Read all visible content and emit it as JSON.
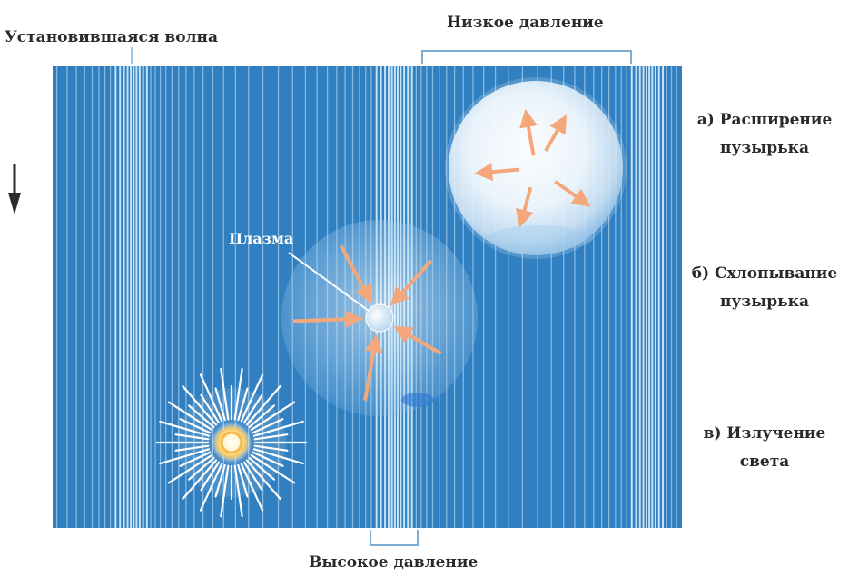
{
  "labels": {
    "standing_wave": "Установившаяся волна",
    "low_pressure": "Низкое давление",
    "high_pressure": "Высокое давление",
    "plasma": "Плазма"
  },
  "stages": {
    "a_line1": "а) Расширение",
    "a_line2": "пузырька",
    "b_line1": "б) Схлопывание",
    "b_line2": "пузырька",
    "c_line1": "в)  Излучение",
    "c_line2": "света"
  },
  "colors": {
    "background": "#2f7fc1",
    "stripe": "#cfe8f8",
    "arrow": "#f4a77a",
    "bubble": "#ffffff",
    "text": "#2a2a2a"
  },
  "icons": [
    "down-arrow-icon",
    "outward-arrow-icon",
    "inward-arrow-icon",
    "light-burst-icon"
  ]
}
